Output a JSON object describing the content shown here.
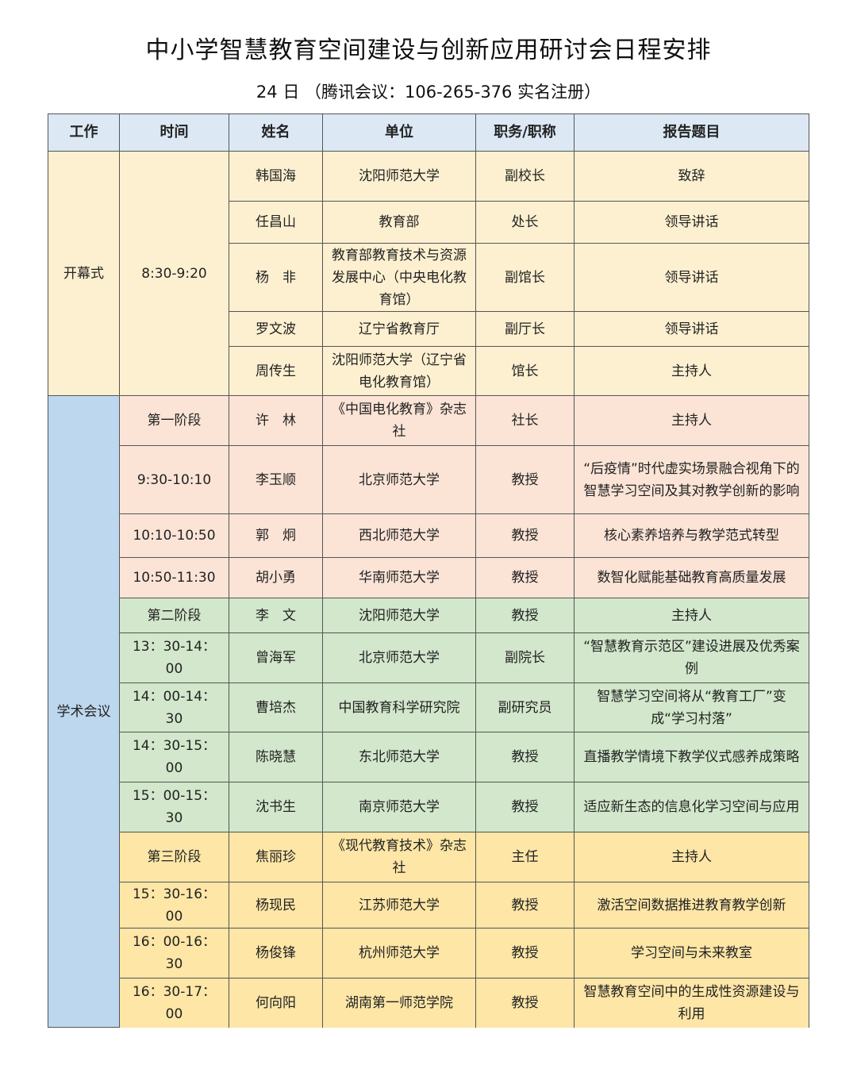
{
  "title": "中小学智慧教育空间建设与创新应用研讨会日程安排",
  "subtitle": "24 日 （腾讯会议：106-265-376 实名注册）",
  "colors": {
    "header": "#dce9f5",
    "opening": "#fdf0d0",
    "academic_work": "#bdd7ee",
    "stage1": "#fbe4d6",
    "stage2": "#d2e7cb",
    "stage3": "#fde6a6"
  },
  "headers": [
    "工作",
    "时间",
    "姓名",
    "单位",
    "职务/职称",
    "报告题目"
  ],
  "sections": [
    {
      "work": "开幕式",
      "time": "8:30-9:20"
    },
    {
      "work": "学术会议"
    }
  ],
  "rows": [
    {
      "name": "韩国海",
      "unit": "沈阳师范大学",
      "post": "副校长",
      "topic": "致辞"
    },
    {
      "name": "任昌山",
      "unit": "教育部",
      "post": "处长",
      "topic": "领导讲话"
    },
    {
      "name": "杨　非",
      "unit": "教育部教育技术与资源发展中心（中央电化教育馆）",
      "post": "副馆长",
      "topic": "领导讲话"
    },
    {
      "name": "罗文波",
      "unit": "辽宁省教育厅",
      "post": "副厅长",
      "topic": "领导讲话"
    },
    {
      "name": "周传生",
      "unit": "沈阳师范大学（辽宁省电化教育馆）",
      "post": "馆长",
      "topic": "主持人"
    },
    {
      "time": "第一阶段",
      "name": "许　林",
      "unit": "《中国电化教育》杂志社",
      "post": "社长",
      "topic": "主持人"
    },
    {
      "time": "9:30-10:10",
      "name": "李玉顺",
      "unit": "北京师范大学",
      "post": "教授",
      "topic": "“后疫情”时代虚实场景融合视角下的智慧学习空间及其对教学创新的影响"
    },
    {
      "time": "10:10-10:50",
      "name": "郭　炯",
      "unit": "西北师范大学",
      "post": "教授",
      "topic": "核心素养培养与教学范式转型"
    },
    {
      "time": "10:50-11:30",
      "name": "胡小勇",
      "unit": "华南师范大学",
      "post": "教授",
      "topic": "数智化赋能基础教育高质量发展"
    },
    {
      "time": "第二阶段",
      "name": "李　文",
      "unit": "沈阳师范大学",
      "post": "教授",
      "topic": "主持人"
    },
    {
      "time": "13：30-14：00",
      "name": "曾海军",
      "unit": "北京师范大学",
      "post": "副院长",
      "topic": "“智慧教育示范区”建设进展及优秀案例"
    },
    {
      "time": "14：00-14：30",
      "name": "曹培杰",
      "unit": "中国教育科学研究院",
      "post": "副研究员",
      "topic": "智慧学习空间将从“教育工厂”变成“学习村落”"
    },
    {
      "time": "14：30-15：00",
      "name": "陈晓慧",
      "unit": "东北师范大学",
      "post": "教授",
      "topic": "直播教学情境下教学仪式感养成策略"
    },
    {
      "time": "15：00-15：30",
      "name": "沈书生",
      "unit": "南京师范大学",
      "post": "教授",
      "topic": "适应新生态的信息化学习空间与应用"
    },
    {
      "time": "第三阶段",
      "name": "焦丽珍",
      "unit": "《现代教育技术》杂志社",
      "post": "主任",
      "topic": "主持人"
    },
    {
      "time": "15：30-16：00",
      "name": "杨现民",
      "unit": "江苏师范大学",
      "post": "教授",
      "topic": "激活空间数据推进教育教学创新"
    },
    {
      "time": "16：00-16：30",
      "name": "杨俊锋",
      "unit": "杭州师范大学",
      "post": "教授",
      "topic": "学习空间与未来教室"
    },
    {
      "time": "16：30-17：00",
      "name": "何向阳",
      "unit": "湖南第一师范学院",
      "post": "教授",
      "topic": "智慧教育空间中的生成性资源建设与利用"
    }
  ]
}
